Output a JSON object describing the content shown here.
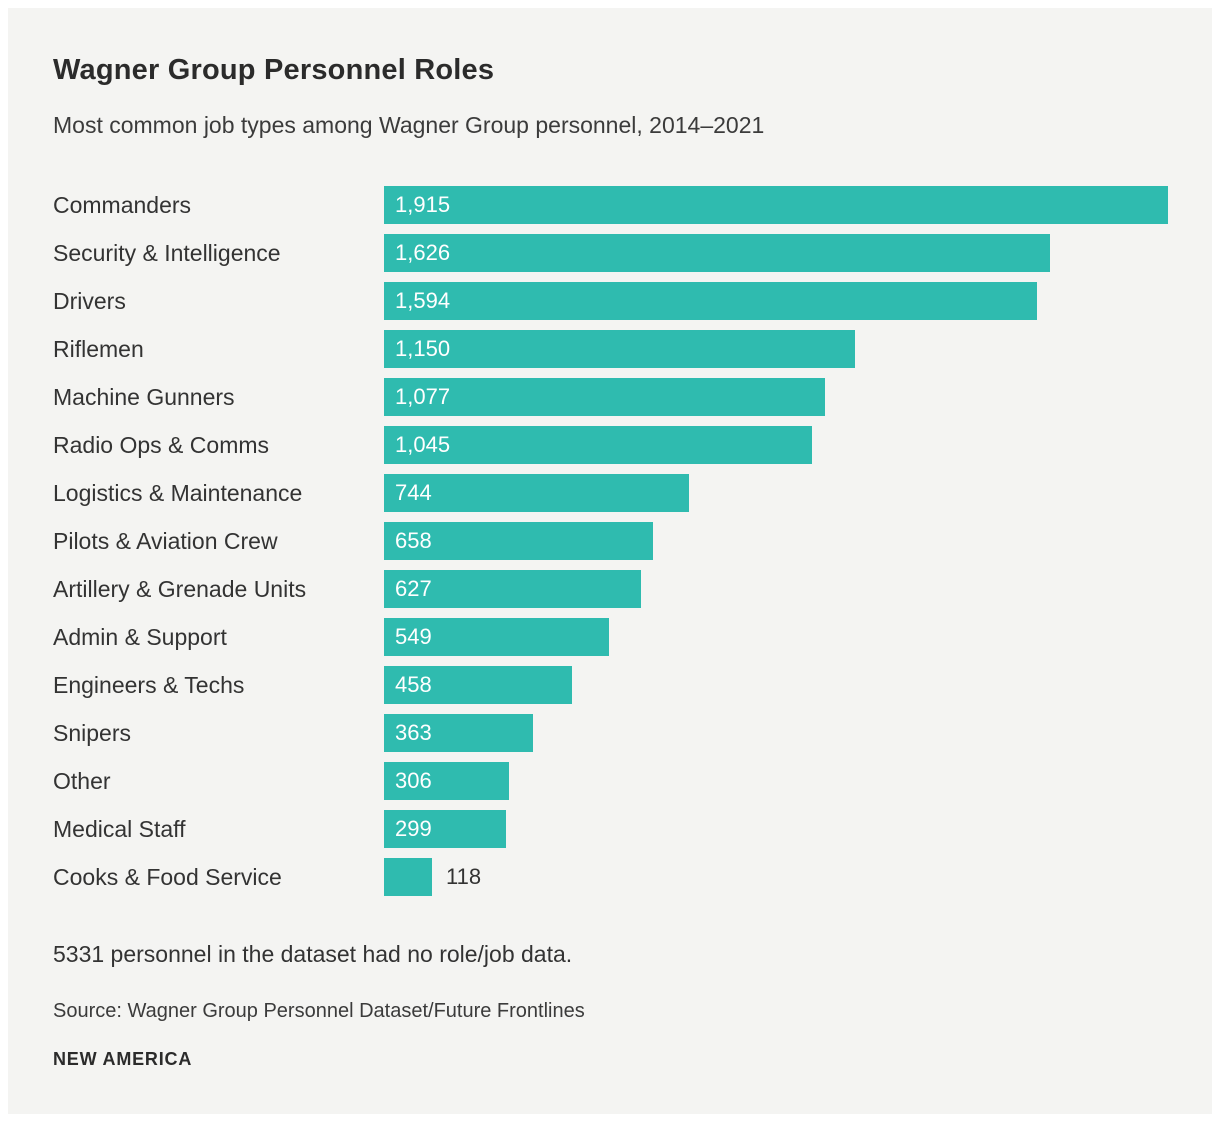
{
  "header": {
    "title": "Wagner Group Personnel Roles",
    "subtitle": "Most common job types among Wagner Group personnel, 2014–2021"
  },
  "chart_data": {
    "type": "bar",
    "orientation": "horizontal",
    "title": "Wagner Group Personnel Roles",
    "xlabel": "",
    "ylabel": "",
    "grid": false,
    "legend": false,
    "xlim": [
      0,
      1915
    ],
    "bar_color": "#2fbbaf",
    "categories": [
      "Commanders",
      "Security & Intelligence",
      "Drivers",
      "Riflemen",
      "Machine Gunners",
      "Radio Ops & Comms",
      "Logistics & Maintenance",
      "Pilots & Aviation Crew",
      "Artillery & Grenade Units",
      "Admin & Support",
      "Engineers & Techs",
      "Snipers",
      "Other",
      "Medical Staff",
      "Cooks & Food Service"
    ],
    "values": [
      1915,
      1626,
      1594,
      1150,
      1077,
      1045,
      744,
      658,
      627,
      549,
      458,
      363,
      306,
      299,
      118
    ],
    "value_labels": [
      "1,915",
      "1,626",
      "1,594",
      "1,150",
      "1,077",
      "1,045",
      "744",
      "658",
      "627",
      "549",
      "458",
      "363",
      "306",
      "299",
      "118"
    ]
  },
  "footer": {
    "note": "5331 personnel in the dataset had no role/job data.",
    "source": "Source: Wagner Group Personnel Dataset/Future Frontlines",
    "brand": "NEW AMERICA"
  },
  "colors": {
    "page_background": "#ffffff",
    "card_background": "#f4f4f2",
    "bar": "#2fbbaf",
    "text_dark": "#2b2b2b",
    "value_text_inside": "#ffffff",
    "value_text_outside": "#333333"
  }
}
